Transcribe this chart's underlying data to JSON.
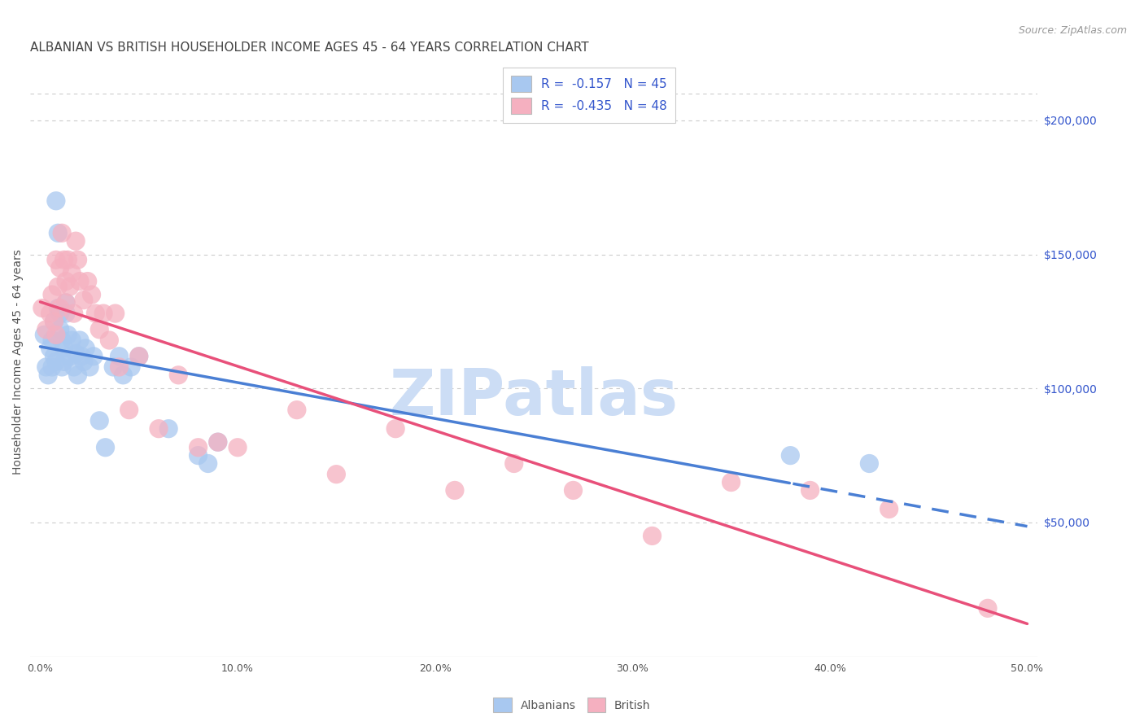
{
  "title": "ALBANIAN VS BRITISH HOUSEHOLDER INCOME AGES 45 - 64 YEARS CORRELATION CHART",
  "source": "Source: ZipAtlas.com",
  "ylabel": "Householder Income Ages 45 - 64 years",
  "xlim": [
    -0.005,
    0.505
  ],
  "ylim": [
    0,
    220000
  ],
  "xticks": [
    0.0,
    0.1,
    0.2,
    0.3,
    0.4,
    0.5
  ],
  "xticklabels": [
    "0.0%",
    "10.0%",
    "20.0%",
    "30.0%",
    "40.0%",
    "50.0%"
  ],
  "yticks_right": [
    50000,
    100000,
    150000,
    200000
  ],
  "yticklabels_right": [
    "$50,000",
    "$100,000",
    "$150,000",
    "$200,000"
  ],
  "albanian_color": "#a8c8f0",
  "british_color": "#f5b0c0",
  "albanian_line_color": "#4a7fd4",
  "british_line_color": "#e8507a",
  "R_albanian": -0.157,
  "N_albanian": 45,
  "R_british": -0.435,
  "N_british": 48,
  "legend_text_color": "#3355cc",
  "albanian_points": [
    [
      0.002,
      120000
    ],
    [
      0.003,
      108000
    ],
    [
      0.004,
      105000
    ],
    [
      0.005,
      115000
    ],
    [
      0.006,
      118000
    ],
    [
      0.006,
      108000
    ],
    [
      0.007,
      112000
    ],
    [
      0.007,
      125000
    ],
    [
      0.008,
      110000
    ],
    [
      0.008,
      170000
    ],
    [
      0.009,
      158000
    ],
    [
      0.009,
      130000
    ],
    [
      0.01,
      128000
    ],
    [
      0.01,
      122000
    ],
    [
      0.011,
      118000
    ],
    [
      0.011,
      108000
    ],
    [
      0.012,
      115000
    ],
    [
      0.012,
      110000
    ],
    [
      0.013,
      132000
    ],
    [
      0.013,
      128000
    ],
    [
      0.014,
      120000
    ],
    [
      0.015,
      112000
    ],
    [
      0.016,
      118000
    ],
    [
      0.017,
      108000
    ],
    [
      0.018,
      113000
    ],
    [
      0.019,
      105000
    ],
    [
      0.02,
      118000
    ],
    [
      0.021,
      112000
    ],
    [
      0.022,
      110000
    ],
    [
      0.023,
      115000
    ],
    [
      0.025,
      108000
    ],
    [
      0.027,
      112000
    ],
    [
      0.03,
      88000
    ],
    [
      0.033,
      78000
    ],
    [
      0.037,
      108000
    ],
    [
      0.04,
      112000
    ],
    [
      0.042,
      105000
    ],
    [
      0.046,
      108000
    ],
    [
      0.05,
      112000
    ],
    [
      0.065,
      85000
    ],
    [
      0.08,
      75000
    ],
    [
      0.085,
      72000
    ],
    [
      0.09,
      80000
    ],
    [
      0.38,
      75000
    ],
    [
      0.42,
      72000
    ]
  ],
  "british_points": [
    [
      0.001,
      130000
    ],
    [
      0.003,
      122000
    ],
    [
      0.005,
      128000
    ],
    [
      0.006,
      135000
    ],
    [
      0.007,
      125000
    ],
    [
      0.008,
      120000
    ],
    [
      0.008,
      148000
    ],
    [
      0.009,
      138000
    ],
    [
      0.01,
      145000
    ],
    [
      0.01,
      130000
    ],
    [
      0.011,
      158000
    ],
    [
      0.012,
      148000
    ],
    [
      0.013,
      140000
    ],
    [
      0.013,
      132000
    ],
    [
      0.014,
      148000
    ],
    [
      0.015,
      138000
    ],
    [
      0.016,
      143000
    ],
    [
      0.017,
      128000
    ],
    [
      0.018,
      155000
    ],
    [
      0.019,
      148000
    ],
    [
      0.02,
      140000
    ],
    [
      0.022,
      133000
    ],
    [
      0.024,
      140000
    ],
    [
      0.026,
      135000
    ],
    [
      0.028,
      128000
    ],
    [
      0.03,
      122000
    ],
    [
      0.032,
      128000
    ],
    [
      0.035,
      118000
    ],
    [
      0.038,
      128000
    ],
    [
      0.04,
      108000
    ],
    [
      0.045,
      92000
    ],
    [
      0.05,
      112000
    ],
    [
      0.06,
      85000
    ],
    [
      0.07,
      105000
    ],
    [
      0.08,
      78000
    ],
    [
      0.09,
      80000
    ],
    [
      0.1,
      78000
    ],
    [
      0.13,
      92000
    ],
    [
      0.15,
      68000
    ],
    [
      0.18,
      85000
    ],
    [
      0.21,
      62000
    ],
    [
      0.24,
      72000
    ],
    [
      0.27,
      62000
    ],
    [
      0.31,
      45000
    ],
    [
      0.35,
      65000
    ],
    [
      0.39,
      62000
    ],
    [
      0.43,
      55000
    ],
    [
      0.48,
      18000
    ]
  ],
  "background_color": "#ffffff",
  "grid_color": "#cccccc",
  "watermark_text": "ZIPatlas",
  "watermark_color": "#ccddf5",
  "title_fontsize": 11,
  "axis_label_fontsize": 10,
  "tick_fontsize": 9,
  "legend_fontsize": 10,
  "alb_line_solid_end": 0.38,
  "alb_line_start_x": 0.0,
  "alb_line_end_x": 0.5,
  "brit_line_start_x": 0.0,
  "brit_line_end_x": 0.5
}
